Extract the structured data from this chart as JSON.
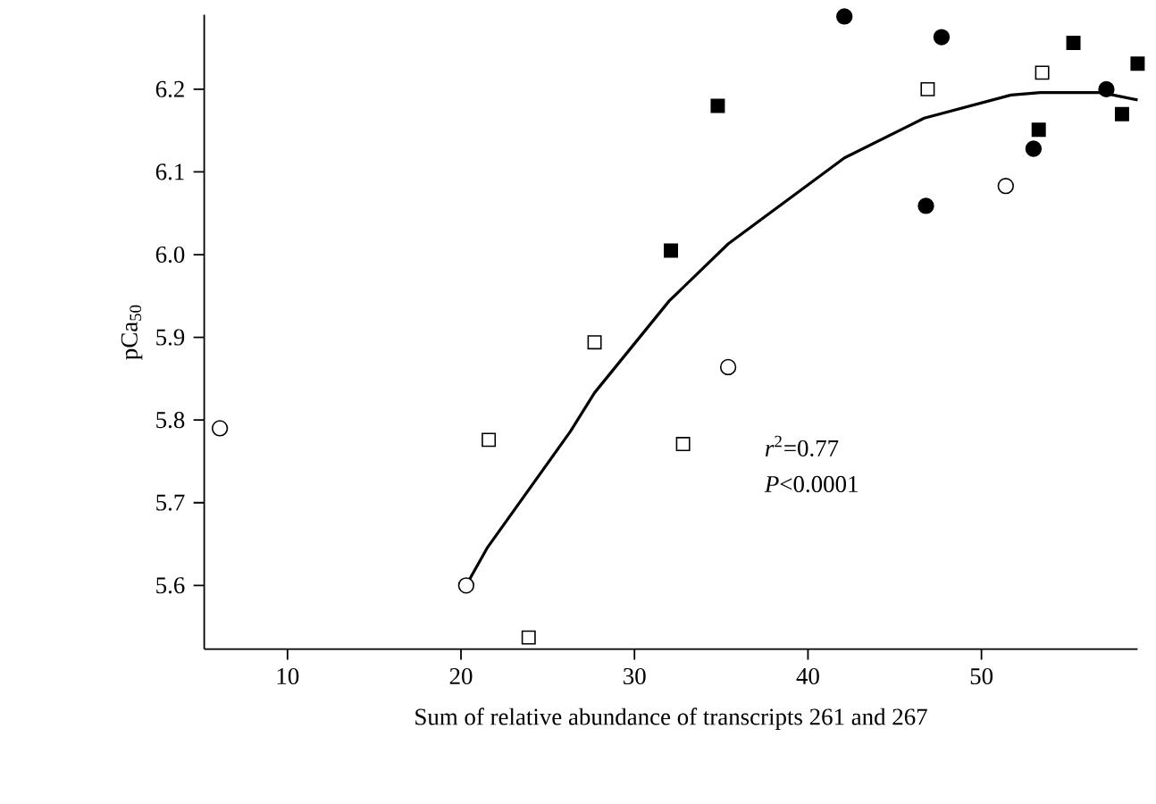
{
  "chart_data": {
    "type": "scatter",
    "xlabel": "Sum of relative abundance of transcripts 261 and 267",
    "ylabel": "pCa$_{50}$",
    "xlim": [
      5.2,
      59.0
    ],
    "ylim": [
      5.523,
      6.29
    ],
    "xticks": [
      10,
      20,
      30,
      40,
      50
    ],
    "yticks": [
      5.6,
      5.7,
      5.8,
      5.9,
      {
        "value": 6.0,
        "label": "6.0"
      },
      6.1,
      6.2
    ],
    "grid": false,
    "annotations": [
      "*r*$^{2}$=0.77",
      "*P*<0.0001"
    ],
    "series": [
      {
        "marker": "circle",
        "color": "#ffffff",
        "x": [
          6.1,
          20.3,
          35.4,
          51.4
        ],
        "values": [
          5.79,
          5.6,
          5.864,
          6.083
        ]
      },
      {
        "marker": "square",
        "color": "#ffffff",
        "x": [
          21.6,
          23.9,
          27.7,
          32.8,
          46.9,
          53.5
        ],
        "values": [
          5.776,
          5.537,
          5.894,
          5.771,
          6.2,
          6.22
        ]
      },
      {
        "marker": "circle",
        "color": "#000000",
        "x": [
          42.1,
          47.7,
          46.8,
          53.0,
          57.2
        ],
        "values": [
          6.288,
          6.263,
          6.059,
          6.128,
          6.2
        ]
      },
      {
        "marker": "square",
        "color": "#000000",
        "x": [
          32.1,
          34.8,
          53.3,
          55.3,
          58.1,
          59.0
        ],
        "values": [
          6.005,
          6.18,
          6.151,
          6.256,
          6.17,
          6.231
        ]
      },
      {
        "type": "line",
        "marker": "none",
        "line_style": "solid",
        "color": "#000000",
        "x": [
          20.3,
          21.5,
          26.3,
          27.7,
          32.0,
          35.4,
          42.1,
          46.7,
          51.7,
          53.4,
          56.9,
          59.0
        ],
        "values": [
          5.6,
          5.645,
          5.786,
          5.833,
          5.944,
          6.013,
          6.117,
          6.165,
          6.193,
          6.196,
          6.196,
          6.187
        ]
      }
    ]
  }
}
